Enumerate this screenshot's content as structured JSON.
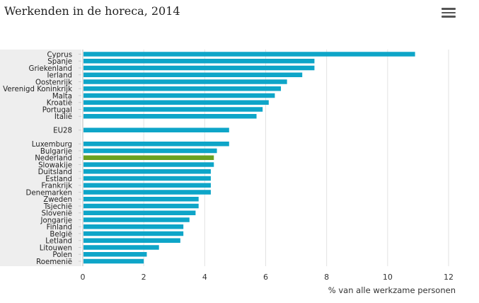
{
  "toolbar": {
    "menu_icon": "hamburger-menu-icon"
  },
  "chart_data": {
    "type": "bar",
    "orientation": "horizontal",
    "title": "Werkenden in de horeca, 2014",
    "xlabel": "% van alle werkzame personen",
    "ylabel": "",
    "xlim": [
      0,
      12
    ],
    "xticks": [
      0,
      2,
      4,
      6,
      8,
      10,
      12
    ],
    "grid": true,
    "bar_color": "#0ea5c8",
    "highlight_color": "#6aa121",
    "highlight_category": "Nederland",
    "groups": [
      {
        "categories": [
          "Cyprus",
          "Spanje",
          "Griekenland",
          "Ierland",
          "Oostenrijk",
          "Verenigd Koninkrijk",
          "Malta",
          "Kroatië",
          "Portugal",
          "Italië"
        ],
        "values": [
          10.9,
          7.6,
          7.6,
          7.2,
          6.7,
          6.5,
          6.3,
          6.1,
          5.9,
          5.7
        ]
      },
      {
        "categories": [
          "EU28"
        ],
        "values": [
          4.8
        ]
      },
      {
        "categories": [
          "Luxemburg",
          "Bulgarije",
          "Nederland",
          "Slowakije",
          "Duitsland",
          "Estland",
          "Frankrijk",
          "Denemarken",
          "Zweden",
          "Tsjechië",
          "Slovenië",
          "Jongarije",
          "Finland",
          "België",
          "Letland",
          "Litouwen",
          "Polen",
          "Roemenië"
        ],
        "values": [
          4.8,
          4.4,
          4.3,
          4.3,
          4.2,
          4.2,
          4.2,
          4.2,
          3.8,
          3.8,
          3.7,
          3.5,
          3.3,
          3.3,
          3.2,
          2.5,
          2.1,
          2.0
        ]
      }
    ]
  }
}
